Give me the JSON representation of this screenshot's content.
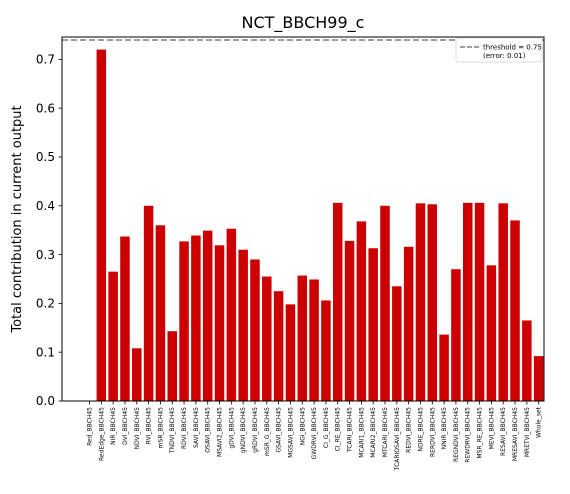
{
  "chart_data": {
    "type": "bar",
    "title": "NCT_BBCH99_c",
    "xlabel": "",
    "ylabel": "Total contribution in current output",
    "ylim": [
      0.0,
      0.75
    ],
    "yticks": [
      "0.0",
      "0.1",
      "0.2",
      "0.3",
      "0.4",
      "0.5",
      "0.6",
      "0.7"
    ],
    "bar_color": "#cc0000",
    "grid": false,
    "categories": [
      "Red_BBCH45",
      "RedEdge_BBCH45",
      "NIR_BBCH45",
      "DVI_BBCH45",
      "NDVI_BBCH45",
      "RVI_BBCH45",
      "mSR_BBCH45",
      "TNDVI_BBCH45",
      "RDVI_BBCH45",
      "SAVI_BBCH45",
      "OSAVI_BBCH45",
      "MSAVI2_BBCH45",
      "gDVI_BBCH45",
      "gNDVI_BBCH45",
      "gRDVI_BBCH45",
      "mSR_G_BBCH45",
      "GSAVI_BBCH45",
      "MGSAVI_BBCH45",
      "NGI_BBCH45",
      "GWDRVI_BBCH45",
      "CI_G_BBCH45",
      "CI_RE_BBCH45",
      "TCARI_BBCH45",
      "MCARI1_BBCH45",
      "MCARI2_BBCH45",
      "MTCARI_BBCH45",
      "TCARIOSAVI_BBCH45",
      "REDVI_BBCH45",
      "NDRE_BBCH45",
      "RERDVI_BBCH45",
      "NNIR_BBCH45",
      "REGNDVI_BBCH45",
      "REWDRVI_BBCH45",
      "MSR_RE_BBCH45",
      "MEVI_BBCH45",
      "RESAVI_BBCH45",
      "MRESAVI_BBCH45",
      "MRETVI_BBCH45",
      "Whole_set"
    ],
    "values": [
      0.0,
      0.72,
      0.265,
      0.337,
      0.108,
      0.4,
      0.36,
      0.143,
      0.327,
      0.339,
      0.349,
      0.319,
      0.353,
      0.31,
      0.29,
      0.255,
      0.225,
      0.198,
      0.257,
      0.249,
      0.206,
      0.406,
      0.328,
      0.368,
      0.313,
      0.4,
      0.235,
      0.316,
      0.405,
      0.403,
      0.136,
      0.27,
      0.406,
      0.406,
      0.278,
      0.405,
      0.37,
      0.165,
      0.092
    ],
    "threshold": {
      "value": 0.75,
      "legend_label": "threshold = 0.75",
      "legend_sublabel": "(error: 0.01)",
      "color": "#7f7f7f",
      "style": "dashed"
    },
    "legend_placement": "top-right"
  }
}
